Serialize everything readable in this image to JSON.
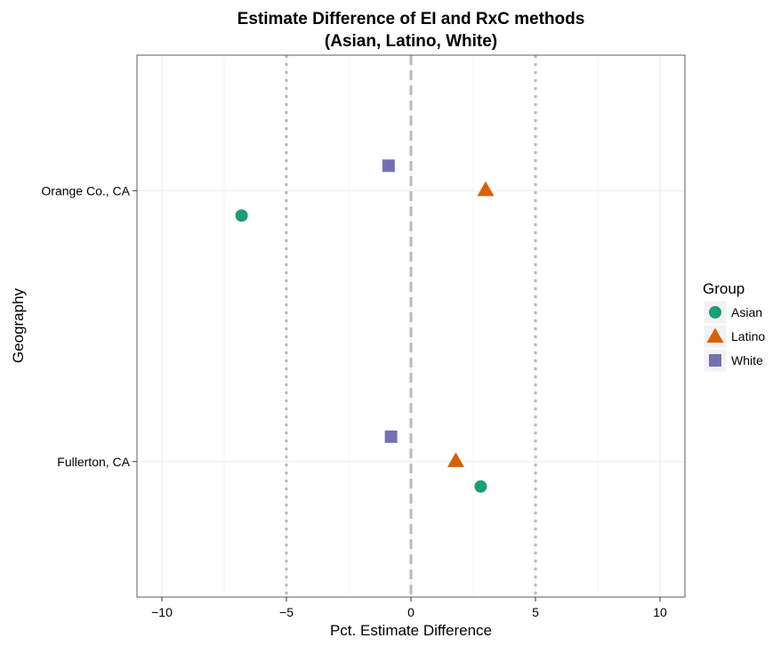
{
  "chart_data": {
    "type": "scatter",
    "title": "Estimate Difference of EI and RxC methods",
    "subtitle": "(Asian, Latino, White)",
    "xlabel": "Pct. Estimate Difference",
    "ylabel": "Geography",
    "xlim": [
      -11,
      11
    ],
    "x_ticks": [
      -10,
      -5,
      0,
      5,
      10
    ],
    "x_tick_labels": [
      "−10",
      "−5",
      "0",
      "5",
      "10"
    ],
    "categories": [
      "Orange Co., CA",
      "Fullerton, CA"
    ],
    "reference_lines": [
      {
        "x": -5,
        "style": "dotted"
      },
      {
        "x": 0,
        "style": "dashed"
      },
      {
        "x": 5,
        "style": "dotted"
      }
    ],
    "grid": true,
    "legend": {
      "title": "Group",
      "position": "right"
    },
    "series": [
      {
        "name": "Asian",
        "shape": "circle",
        "color": "#1B9E77",
        "points": [
          {
            "category": "Orange Co., CA",
            "x": -6.8
          },
          {
            "category": "Fullerton, CA",
            "x": 2.8
          }
        ]
      },
      {
        "name": "Latino",
        "shape": "triangle",
        "color": "#D95F02",
        "points": [
          {
            "category": "Orange Co., CA",
            "x": 3.0
          },
          {
            "category": "Fullerton, CA",
            "x": 1.8
          }
        ]
      },
      {
        "name": "White",
        "shape": "square",
        "color": "#7570B3",
        "points": [
          {
            "category": "Orange Co., CA",
            "x": -0.9
          },
          {
            "category": "Fullerton, CA",
            "x": -0.8
          }
        ]
      }
    ]
  }
}
